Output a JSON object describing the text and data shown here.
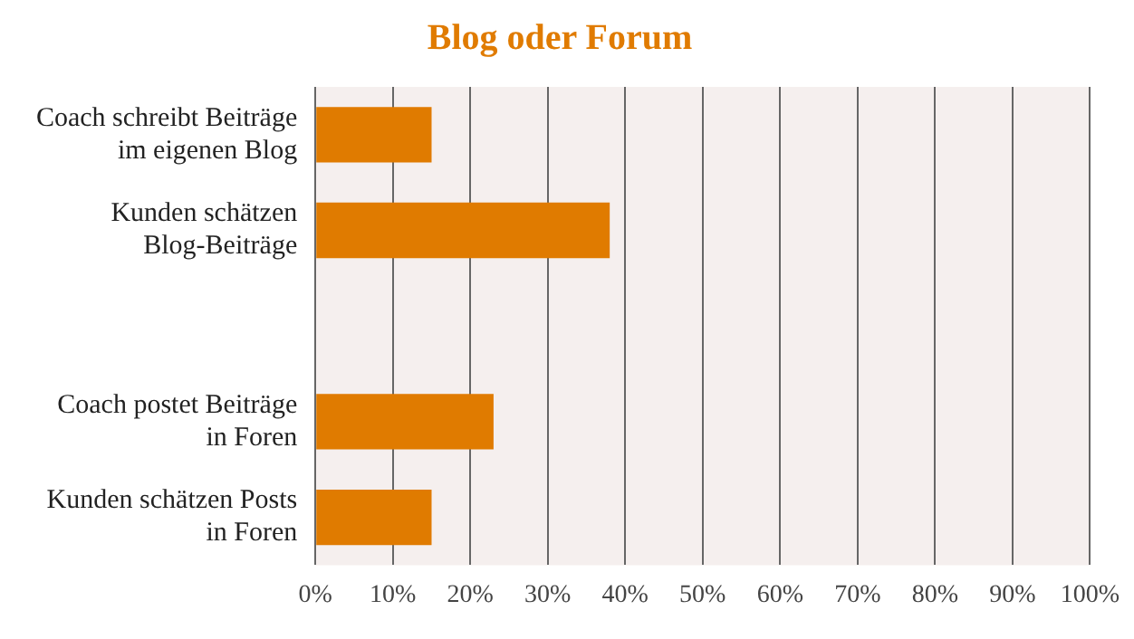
{
  "chart_data": {
    "type": "bar",
    "title": "Blog oder Forum",
    "orientation": "horizontal",
    "categories": [
      "Coach schreibt Beiträge\nim eigenen Blog",
      "Kunden schätzen\nBlog-Beiträge",
      null,
      "Coach postet Beiträge\nin Foren",
      "Kunden schätzen Posts\nin Foren"
    ],
    "values": [
      15,
      38,
      null,
      23,
      15
    ],
    "color": "#e07b00",
    "xlim": [
      0,
      100
    ],
    "xticks": [
      {
        "value": 0,
        "label": "0%"
      },
      {
        "value": 10,
        "label": "10%"
      },
      {
        "value": 20,
        "label": "20%"
      },
      {
        "value": 30,
        "label": "30%"
      },
      {
        "value": 40,
        "label": "40%"
      },
      {
        "value": 50,
        "label": "50%"
      },
      {
        "value": 60,
        "label": "60%"
      },
      {
        "value": 70,
        "label": "70%"
      },
      {
        "value": 80,
        "label": "80%"
      },
      {
        "value": 90,
        "label": "90%"
      },
      {
        "value": 100,
        "label": "100%"
      }
    ],
    "grid": "x",
    "legend": false
  }
}
